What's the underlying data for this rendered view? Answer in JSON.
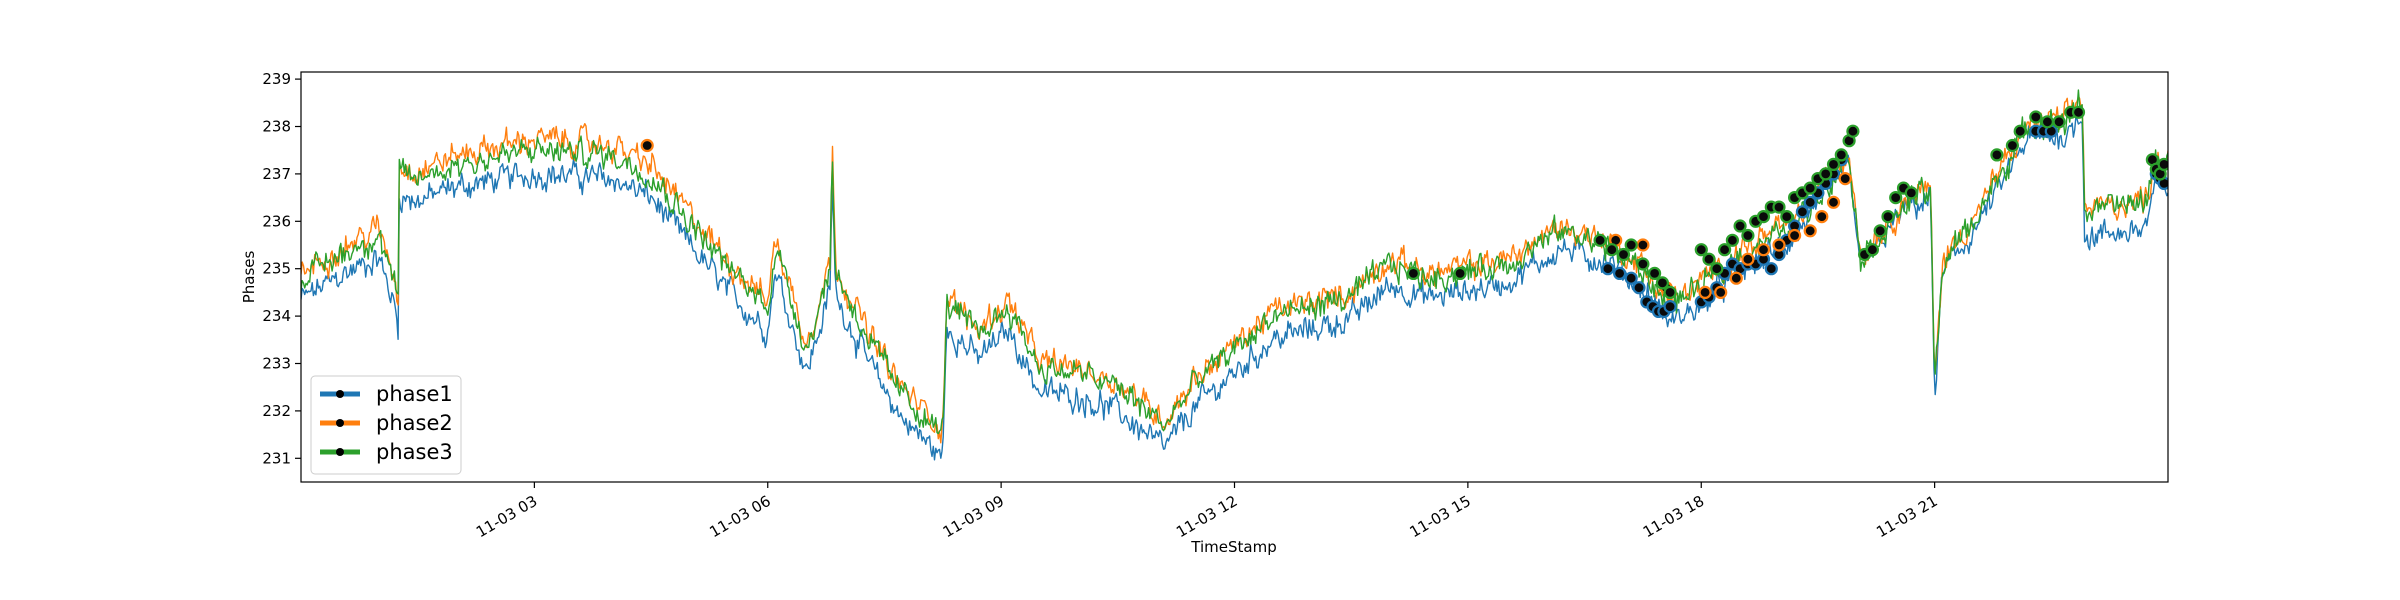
{
  "chart_data": {
    "type": "line",
    "title": "",
    "xlabel": "TimeStamp",
    "ylabel": "Phases",
    "xlim": [
      0.0,
      24.0
    ],
    "ylim": [
      230.5,
      239.15
    ],
    "yticks": [
      231,
      232,
      233,
      234,
      235,
      236,
      237,
      238,
      239
    ],
    "xticks": [
      {
        "t": 3,
        "label": "11-03 03"
      },
      {
        "t": 6,
        "label": "11-03 06"
      },
      {
        "t": 9,
        "label": "11-03 09"
      },
      {
        "t": 12,
        "label": "11-03 12"
      },
      {
        "t": 15,
        "label": "11-03 15"
      },
      {
        "t": 18,
        "label": "11-03 18"
      },
      {
        "t": 21,
        "label": "11-03 21"
      }
    ],
    "legend": {
      "placement": "lower-left"
    },
    "grid": false,
    "anchors": [
      [
        0.0,
        234.8
      ],
      [
        0.5,
        235.3
      ],
      [
        1.0,
        235.7
      ],
      [
        1.2,
        234.7
      ],
      [
        1.25,
        234.2
      ],
      [
        1.26,
        237.0
      ],
      [
        1.5,
        236.9
      ],
      [
        2.0,
        237.2
      ],
      [
        3.0,
        237.5
      ],
      [
        4.0,
        237.4
      ],
      [
        4.5,
        237.0
      ],
      [
        5.0,
        236.0
      ],
      [
        5.5,
        235.0
      ],
      [
        6.0,
        234.2
      ],
      [
        6.1,
        235.5
      ],
      [
        6.5,
        233.3
      ],
      [
        6.8,
        235.0
      ],
      [
        6.83,
        237.4
      ],
      [
        6.87,
        235.0
      ],
      [
        7.0,
        234.5
      ],
      [
        7.3,
        233.5
      ],
      [
        7.7,
        232.4
      ],
      [
        8.0,
        231.9
      ],
      [
        8.25,
        231.5
      ],
      [
        8.3,
        234.3
      ],
      [
        8.7,
        233.6
      ],
      [
        9.1,
        234.2
      ],
      [
        9.5,
        232.9
      ],
      [
        10.0,
        232.8
      ],
      [
        10.5,
        232.5
      ],
      [
        11.1,
        231.7
      ],
      [
        11.5,
        232.6
      ],
      [
        12.5,
        234.0
      ],
      [
        13.5,
        234.4
      ],
      [
        14.0,
        235.1
      ],
      [
        14.5,
        234.8
      ],
      [
        15.5,
        235.1
      ],
      [
        16.2,
        235.8
      ],
      [
        16.8,
        235.5
      ],
      [
        17.2,
        235.0
      ],
      [
        17.6,
        234.2
      ],
      [
        18.0,
        234.6
      ],
      [
        18.5,
        235.3
      ],
      [
        19.2,
        235.9
      ],
      [
        19.9,
        237.4
      ],
      [
        20.0,
        236.0
      ],
      [
        20.05,
        235.2
      ],
      [
        20.7,
        236.5
      ],
      [
        20.95,
        236.6
      ],
      [
        21.0,
        232.4
      ],
      [
        21.1,
        235.1
      ],
      [
        21.5,
        236.0
      ],
      [
        22.2,
        238.0
      ],
      [
        22.7,
        238.1
      ],
      [
        22.9,
        238.6
      ],
      [
        22.93,
        236.2
      ],
      [
        23.3,
        236.3
      ],
      [
        23.7,
        236.4
      ],
      [
        23.85,
        237.3
      ],
      [
        24.0,
        237.3
      ]
    ],
    "series": [
      {
        "name": "phase1",
        "color": "#1f77b4",
        "offset": [
          [
            0,
            -0.45
          ],
          [
            4,
            -0.5
          ],
          [
            12,
            -0.5
          ],
          [
            17,
            -0.35
          ],
          [
            18.5,
            -0.35
          ],
          [
            20.5,
            -0.1
          ],
          [
            21,
            -0.2
          ],
          [
            22.9,
            -0.3
          ],
          [
            22.93,
            -0.55
          ],
          [
            24,
            -0.55
          ]
        ],
        "points": [
          [
            16.8,
            235.0
          ],
          [
            16.95,
            234.9
          ],
          [
            17.1,
            234.8
          ],
          [
            17.2,
            234.6
          ],
          [
            17.3,
            234.3
          ],
          [
            17.38,
            234.2
          ],
          [
            17.45,
            234.1
          ],
          [
            17.52,
            234.1
          ],
          [
            17.6,
            234.2
          ],
          [
            18.0,
            234.3
          ],
          [
            18.1,
            234.4
          ],
          [
            18.2,
            234.6
          ],
          [
            18.3,
            234.9
          ],
          [
            18.4,
            235.1
          ],
          [
            18.5,
            235.0
          ],
          [
            18.6,
            235.1
          ],
          [
            18.7,
            235.1
          ],
          [
            18.8,
            235.2
          ],
          [
            18.9,
            235.0
          ],
          [
            19.0,
            235.3
          ],
          [
            19.1,
            235.6
          ],
          [
            19.2,
            235.9
          ],
          [
            19.3,
            236.2
          ],
          [
            19.4,
            236.4
          ],
          [
            19.5,
            236.6
          ],
          [
            19.6,
            236.8
          ],
          [
            19.7,
            237.0
          ],
          [
            19.8,
            237.3
          ],
          [
            22.3,
            237.9
          ],
          [
            22.4,
            237.9
          ],
          [
            22.5,
            237.9
          ],
          [
            23.85,
            237.0
          ],
          [
            23.9,
            236.9
          ],
          [
            23.95,
            236.8
          ]
        ]
      },
      {
        "name": "phase2",
        "color": "#ff7f0e",
        "offset": [
          [
            0,
            0.1
          ],
          [
            3,
            0.25
          ],
          [
            5,
            0.15
          ],
          [
            12,
            0.1
          ],
          [
            18,
            0.1
          ],
          [
            24,
            0.05
          ]
        ],
        "points": [
          [
            4.45,
            237.6
          ],
          [
            16.9,
            235.6
          ],
          [
            17.25,
            235.5
          ],
          [
            17.55,
            234.6
          ],
          [
            18.05,
            234.5
          ],
          [
            18.25,
            234.5
          ],
          [
            18.45,
            234.8
          ],
          [
            18.6,
            235.2
          ],
          [
            18.8,
            235.4
          ],
          [
            19.0,
            235.5
          ],
          [
            19.2,
            235.7
          ],
          [
            19.4,
            235.8
          ],
          [
            19.55,
            236.1
          ],
          [
            19.7,
            236.4
          ],
          [
            19.85,
            236.9
          ]
        ]
      },
      {
        "name": "phase3",
        "color": "#2ca02c",
        "offset": [
          [
            0,
            0.0
          ],
          [
            24,
            0.0
          ]
        ],
        "points": [
          [
            14.3,
            234.9
          ],
          [
            14.9,
            234.9
          ],
          [
            16.7,
            235.6
          ],
          [
            16.85,
            235.4
          ],
          [
            17.0,
            235.3
          ],
          [
            17.1,
            235.5
          ],
          [
            17.25,
            235.1
          ],
          [
            17.4,
            234.9
          ],
          [
            17.5,
            234.7
          ],
          [
            17.6,
            234.5
          ],
          [
            18.0,
            235.4
          ],
          [
            18.1,
            235.2
          ],
          [
            18.2,
            235.0
          ],
          [
            18.3,
            235.4
          ],
          [
            18.4,
            235.6
          ],
          [
            18.5,
            235.9
          ],
          [
            18.6,
            235.7
          ],
          [
            18.7,
            236.0
          ],
          [
            18.8,
            236.1
          ],
          [
            18.9,
            236.3
          ],
          [
            19.0,
            236.3
          ],
          [
            19.1,
            236.1
          ],
          [
            19.2,
            236.5
          ],
          [
            19.3,
            236.6
          ],
          [
            19.4,
            236.7
          ],
          [
            19.5,
            236.9
          ],
          [
            19.6,
            237.0
          ],
          [
            19.7,
            237.2
          ],
          [
            19.8,
            237.4
          ],
          [
            19.9,
            237.7
          ],
          [
            19.95,
            237.9
          ],
          [
            20.1,
            235.3
          ],
          [
            20.2,
            235.4
          ],
          [
            20.3,
            235.8
          ],
          [
            20.4,
            236.1
          ],
          [
            20.5,
            236.5
          ],
          [
            20.6,
            236.7
          ],
          [
            20.7,
            236.6
          ],
          [
            21.8,
            237.4
          ],
          [
            22.0,
            237.6
          ],
          [
            22.1,
            237.9
          ],
          [
            22.3,
            238.2
          ],
          [
            22.45,
            238.1
          ],
          [
            22.6,
            238.1
          ],
          [
            22.75,
            238.3
          ],
          [
            22.85,
            238.3
          ],
          [
            23.8,
            237.3
          ],
          [
            23.85,
            237.1
          ],
          [
            23.9,
            237.0
          ],
          [
            23.95,
            237.2
          ]
        ]
      }
    ]
  }
}
